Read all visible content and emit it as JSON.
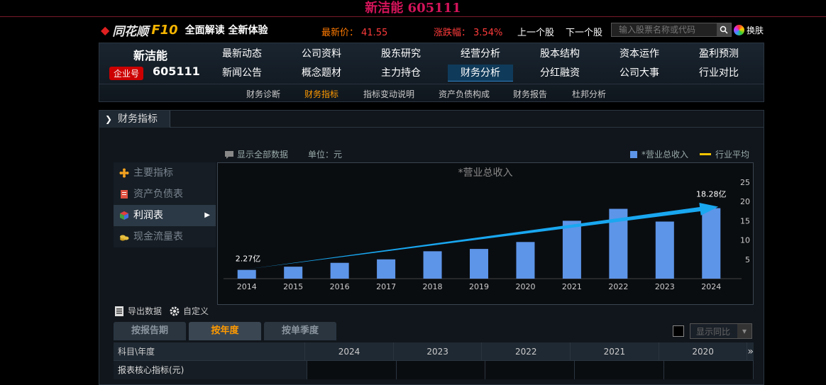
{
  "title": "新洁能 605111",
  "topbar": {
    "logo_name": "同花顺",
    "logo_f10": "F10",
    "slogan": "全面解读 全新体验",
    "price_label": "最新价：",
    "price": "41.55",
    "change_label": "涨跌幅：",
    "change": "3.54%",
    "prev_stock": "上一个股",
    "next_stock": "下一个股",
    "search_placeholder": "输入股票名称或代码",
    "skin": "换肤"
  },
  "stock": {
    "name": "新洁能",
    "tag": "企业号",
    "code": "605111"
  },
  "menu": {
    "row1": [
      "最新动态",
      "公司资料",
      "股东研究",
      "经营分析",
      "股本结构",
      "资本运作",
      "盈利预测"
    ],
    "row2": [
      "新闻公告",
      "概念题材",
      "主力持仓",
      "财务分析",
      "分红融资",
      "公司大事",
      "行业对比"
    ]
  },
  "subnav": [
    "财务诊断",
    "财务指标",
    "指标变动说明",
    "资产负债构成",
    "财务报告",
    "杜邦分析"
  ],
  "section": {
    "title": "财务指标",
    "show_all": "显示全部数据",
    "unit": "单位：元",
    "legend_revenue": "*营业总收入",
    "legend_avg": "行业平均"
  },
  "sidemenu": [
    "主要指标",
    "资产负债表",
    "利润表",
    "现金流量表"
  ],
  "chart_data": {
    "type": "bar",
    "title": "*营业总收入",
    "categories": [
      "2014",
      "2015",
      "2016",
      "2017",
      "2018",
      "2019",
      "2020",
      "2021",
      "2022",
      "2023",
      "2024"
    ],
    "values": [
      2.27,
      3.1,
      4.1,
      5.0,
      7.1,
      7.7,
      9.5,
      15.0,
      18.1,
      14.8,
      18.28
    ],
    "ylim": [
      0,
      25
    ],
    "yticks": [
      5,
      10,
      15,
      20,
      25
    ],
    "first_label": "2.27亿",
    "last_label": "18.28亿",
    "bar_color": "#5d95e8",
    "trend_color": "#19a7f0"
  },
  "actions": {
    "export": "导出数据",
    "customize": "自定义"
  },
  "tabs": [
    "按报告期",
    "按年度",
    "按单季度"
  ],
  "yoy": "显示同比",
  "table": {
    "header_first": "科目\\年度",
    "years": [
      "2024",
      "2023",
      "2022",
      "2021",
      "2020"
    ],
    "more": "»",
    "rows": [
      "报表核心指标(元)"
    ]
  }
}
